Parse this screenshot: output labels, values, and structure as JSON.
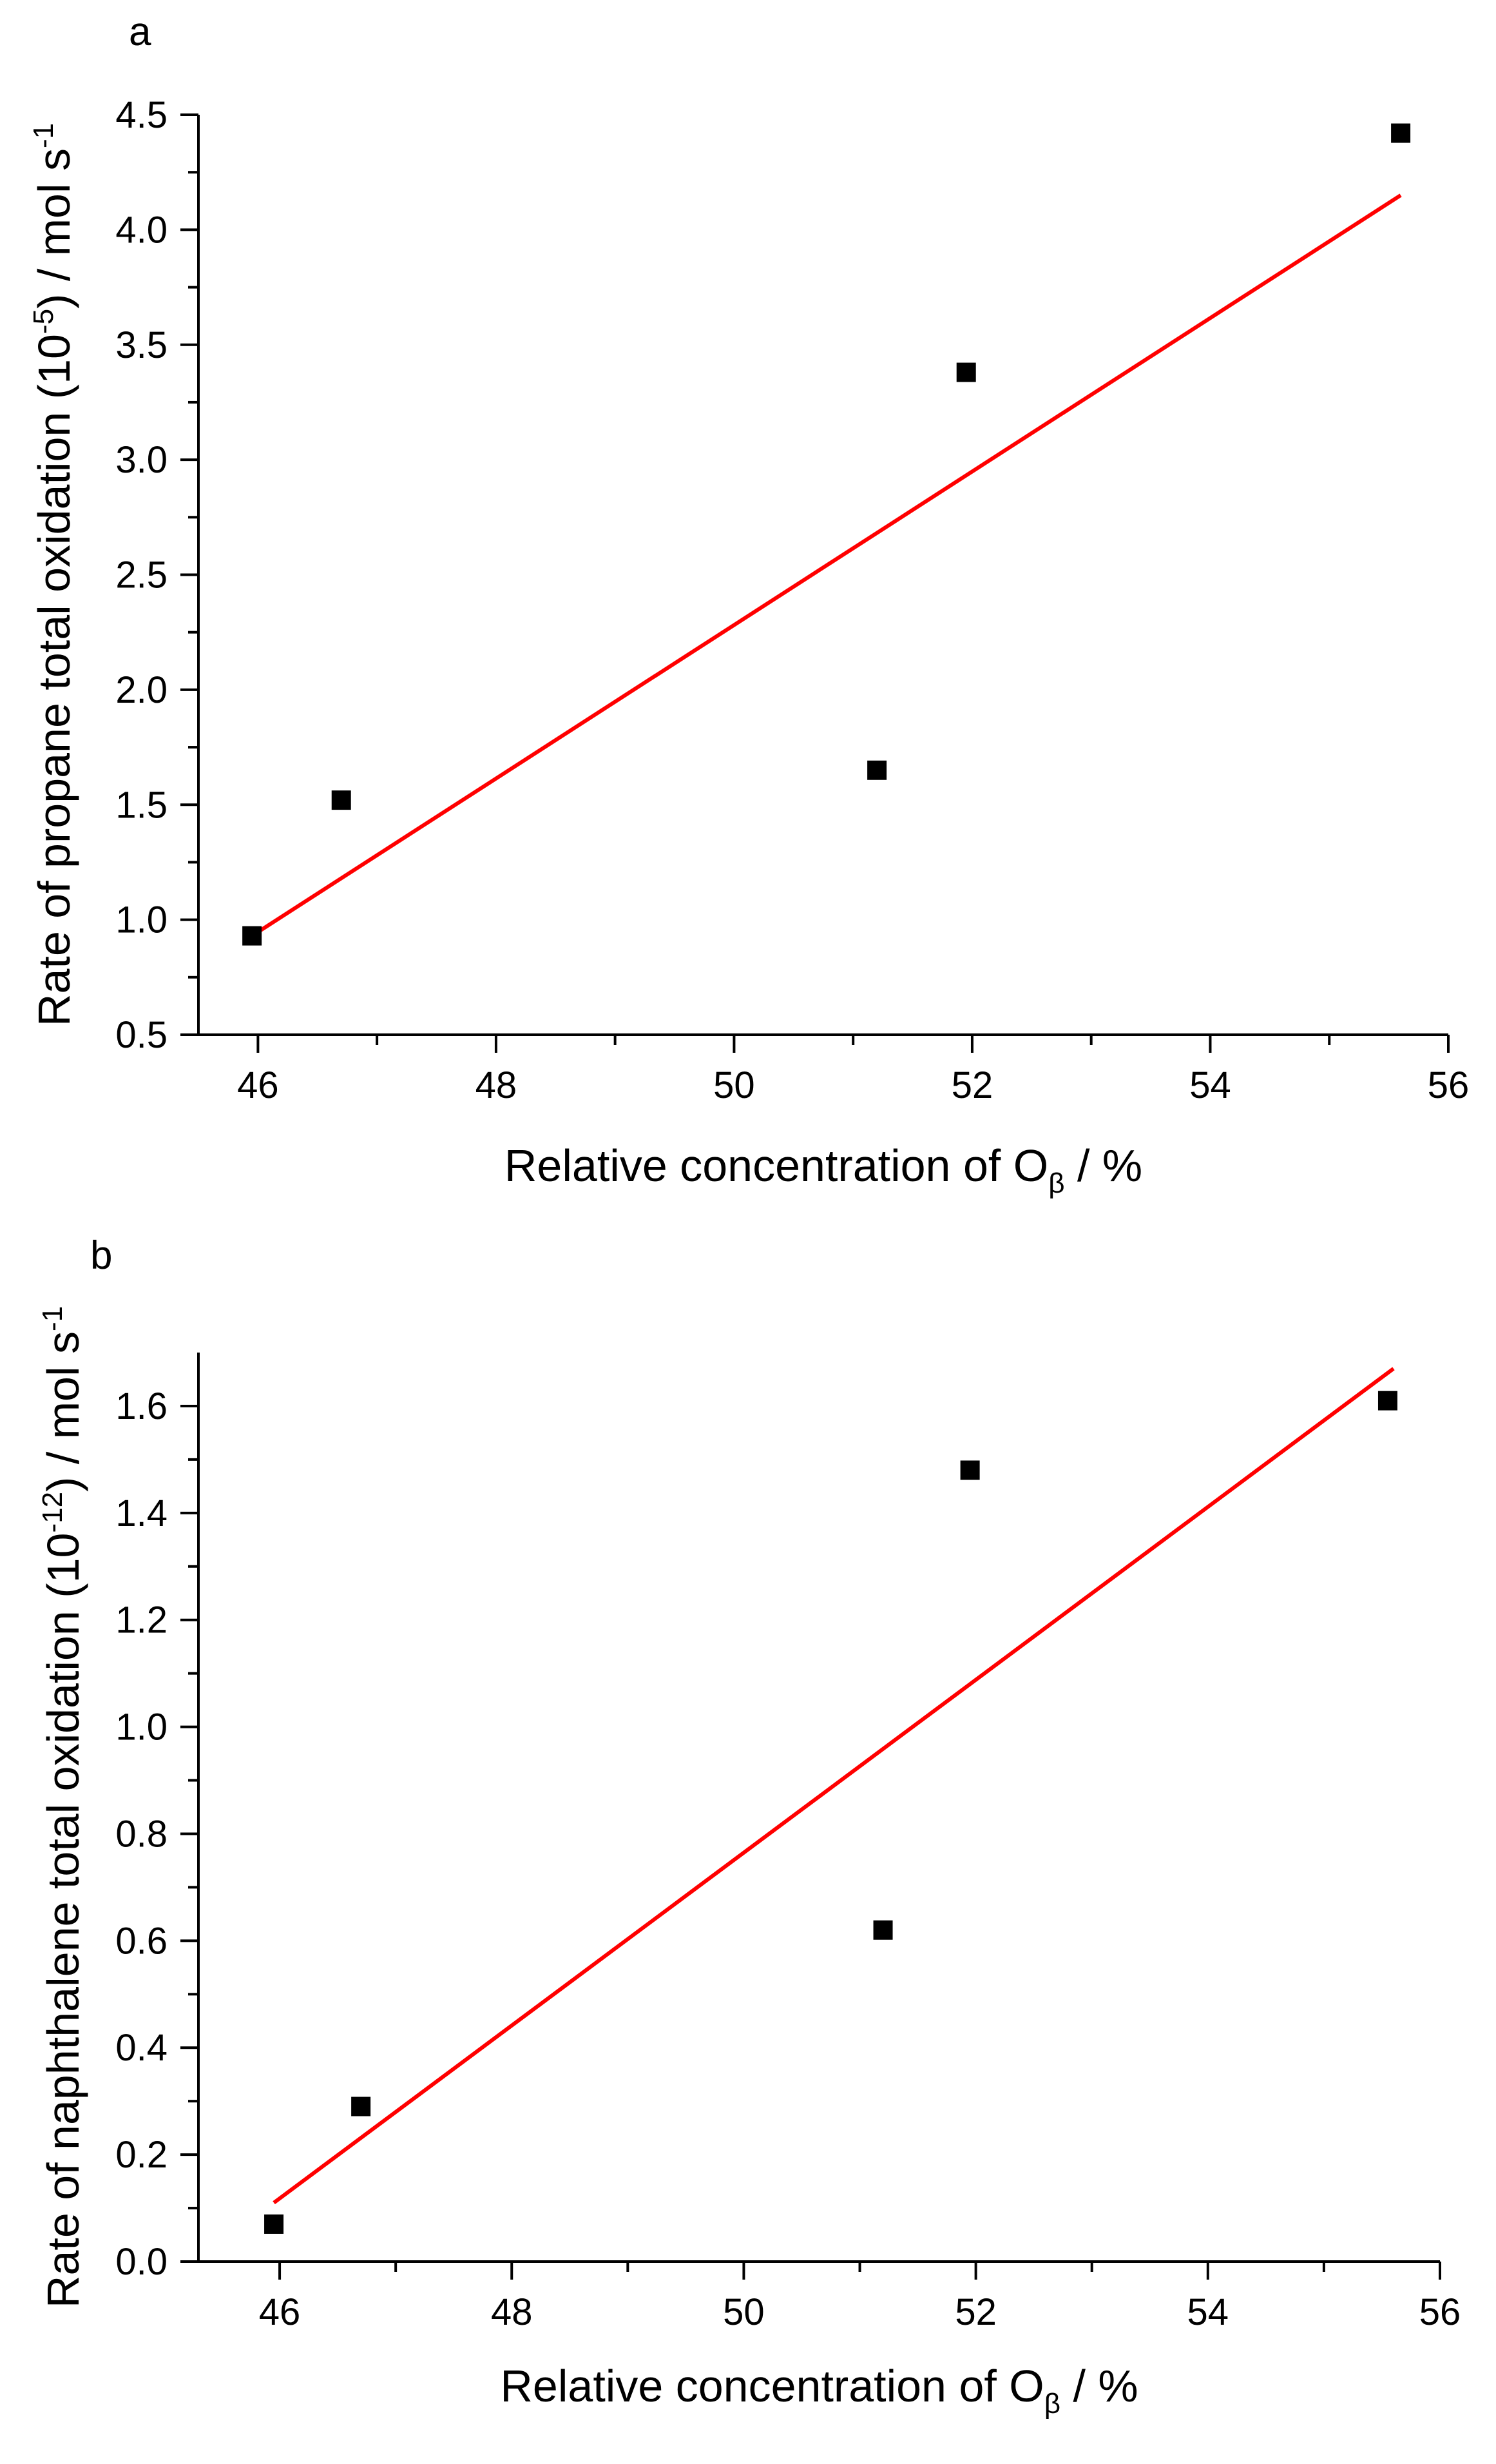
{
  "chart_data": [
    {
      "type": "scatter",
      "panel_label": "a",
      "xlabel": {
        "main": "Relative concentration of O",
        "sub": "β",
        "suffix": " / %"
      },
      "ylabel": {
        "pre": "Rate of propane total oxidation (10",
        "sup": "-5",
        "post": ") / mol s",
        "sup2": "-1"
      },
      "xlim": [
        45.5,
        56
      ],
      "ylim": [
        0.5,
        4.5
      ],
      "xticks": [
        46,
        48,
        50,
        52,
        54,
        56
      ],
      "xtick_labels": [
        "46",
        "48",
        "50",
        "52",
        "54",
        "56"
      ],
      "yticks": [
        0.5,
        1.0,
        1.5,
        2.0,
        2.5,
        3.0,
        3.5,
        4.0,
        4.5
      ],
      "ytick_labels": [
        "0.5",
        "1.0",
        "1.5",
        "2.0",
        "2.5",
        "3.0",
        "3.5",
        "4.0",
        "4.5"
      ],
      "series": [
        {
          "name": "data",
          "x": [
            45.95,
            46.7,
            51.2,
            51.95,
            55.6
          ],
          "y": [
            0.93,
            1.52,
            1.65,
            3.38,
            4.42
          ],
          "color": "#000000",
          "marker": "square"
        }
      ],
      "fit": {
        "x": [
          45.95,
          55.6
        ],
        "y": [
          0.93,
          4.15
        ],
        "color": "#ff0000"
      }
    },
    {
      "type": "scatter",
      "panel_label": "b",
      "xlabel": {
        "main": "Relative concentration of O",
        "sub": "β",
        "suffix": " / %"
      },
      "ylabel": {
        "pre": "Rate of naphthalene total oxidation (10",
        "sup": "-12",
        "post": ") / mol s",
        "sup2": "-1"
      },
      "xlim": [
        45.3,
        56
      ],
      "ylim": [
        0.0,
        1.7
      ],
      "xticks": [
        46,
        48,
        50,
        52,
        54,
        56
      ],
      "xtick_labels": [
        "46",
        "48",
        "50",
        "52",
        "54",
        "56"
      ],
      "yticks": [
        0.0,
        0.2,
        0.4,
        0.6,
        0.8,
        1.0,
        1.2,
        1.4,
        1.6
      ],
      "ytick_labels": [
        "0.0",
        "0.2",
        "0.4",
        "0.6",
        "0.8",
        "1.0",
        "1.2",
        "1.4",
        "1.6"
      ],
      "series": [
        {
          "name": "data",
          "x": [
            45.95,
            46.7,
            51.2,
            51.95,
            55.55
          ],
          "y": [
            0.07,
            0.29,
            0.62,
            1.48,
            1.61
          ],
          "color": "#000000",
          "marker": "square"
        }
      ],
      "fit": {
        "x": [
          45.95,
          55.6
        ],
        "y": [
          0.11,
          1.67
        ],
        "color": "#ff0000"
      }
    }
  ]
}
